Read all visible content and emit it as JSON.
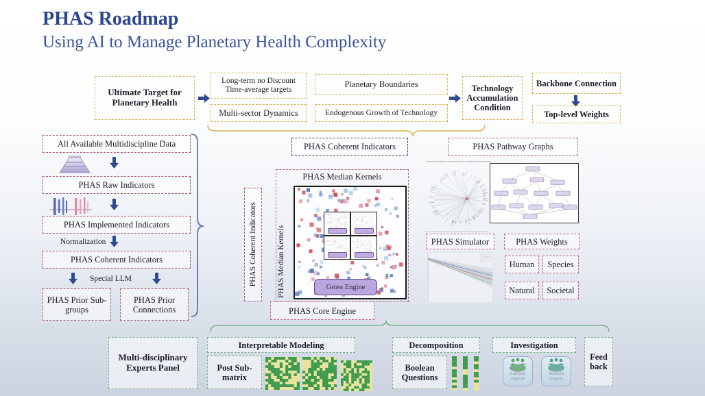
{
  "title": "PHAS Roadmap",
  "subtitle": "Using AI to Manage Planetary Health Complexity",
  "top_flow": {
    "ultimate_target": "Ultimate Target for Planetary Health",
    "long_term": "Long-term no Discount Time-average targets",
    "multi_sector": "Multi-sector Dynamics",
    "planetary_boundaries": "Planetary Boundaries",
    "endogenous_growth": "Endogenous Growth of Technology",
    "tech_accumulation": "Technology Accumulation Condition",
    "backbone_connection": "Backbone Connection",
    "top_level_weights": "Top-level Weights"
  },
  "left_pipeline": {
    "all_data": "All Available Multidiscipline Data",
    "raw_indicators": "PHAS  Raw Indicators",
    "implemented_indicators": "PHAS  Implemented Indicators",
    "normalization": "Normalization",
    "coherent_indicators": "PHAS  Coherent Indicators",
    "special_llm": "Special LLM",
    "prior_subgroups": "PHAS Prior Sub-groups",
    "prior_connections": "PHAS Prior Connections"
  },
  "core": {
    "coherent_indicators": "PHAS Coherent Indicators",
    "median_kernels": "PHAS Median Kernels",
    "coherent_indicators_vertical": "PHAS Coherent Indicators",
    "median_kernels_vertical": "PHAS Median Kernels",
    "gross_engine": "Gross Engine",
    "core_engine": "PHAS Core Engine"
  },
  "right_panel": {
    "pathway_graphs": "PHAS  Pathway Graphs",
    "simulator": "PHAS  Simulator",
    "weights": "PHAS  Weights",
    "weight_human": "Human",
    "weight_species": "Species",
    "weight_natural": "Natural",
    "weight_societal": "Societal"
  },
  "bottom_panel": {
    "experts_panel": "Multi-disciplinary Experts Panel",
    "interpretable_modeling": "Interpretable Modeling",
    "post_submatrix": "Post Sub-matrix",
    "decomposition": "Decomposition",
    "boolean_questions": "Boolean Questions",
    "investigation": "Investigation",
    "subfield_experts": "Subfield Experts",
    "feedback": "Feed back"
  },
  "icons": {
    "funnel": "data-funnel-icon",
    "bars": "indicator-bars-icon",
    "experts": "people-group-icon"
  },
  "colors": {
    "title": "#2b4590",
    "accent_yellow": "#d9b44f",
    "accent_rose": "#a4576a",
    "accent_pink": "#c4607a",
    "accent_navy": "#4a4458",
    "accent_green": "#79b287",
    "arrow_blue": "#2e4a8f",
    "brace_blue": "#6a7fb5",
    "engine_purple": "#b9a6de",
    "matrix_red": "#cc4c55",
    "matrix_blue": "#4a7ab5",
    "matrix_pink": "#e598a8",
    "cell_green": "#3f9a4d",
    "cell_yellow": "#e9e49b"
  }
}
